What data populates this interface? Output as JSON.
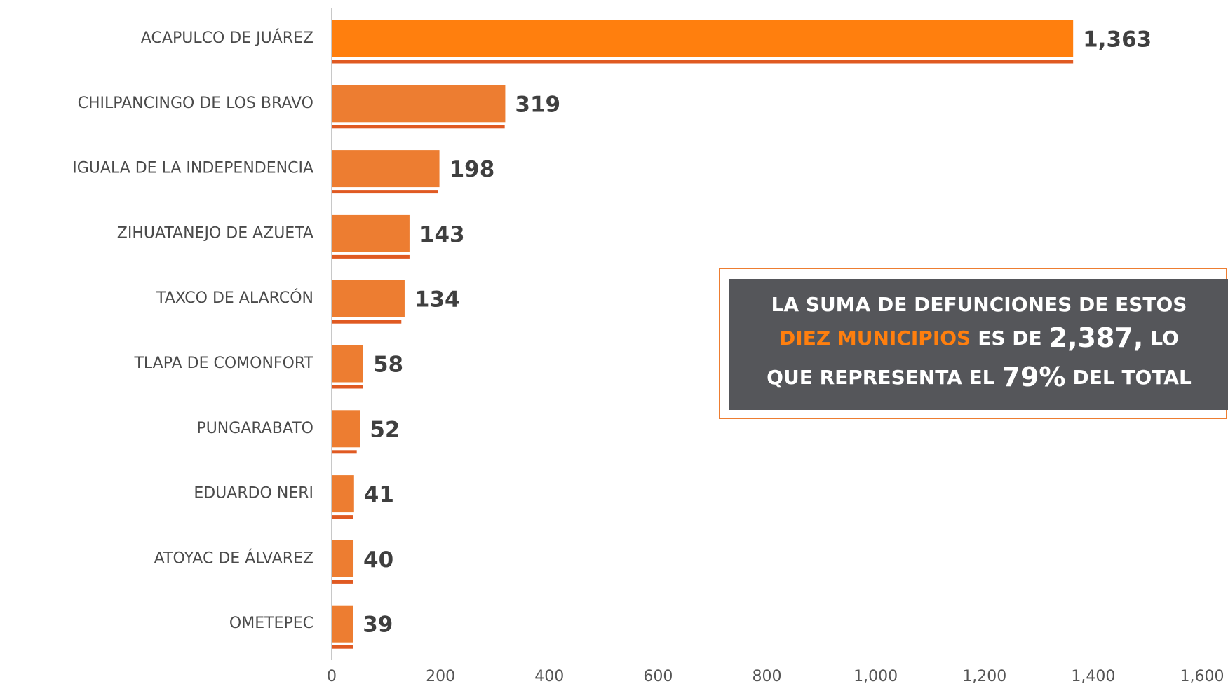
{
  "chart_data": {
    "type": "barh",
    "categories": [
      "ACAPULCO DE JUÁREZ",
      "CHILPANCINGO DE LOS BRAVO",
      "IGUALA DE LA INDEPENDENCIA",
      "ZIHUATANEJO DE AZUETA",
      "TAXCO DE ALARCÓN",
      "TLAPA DE COMONFORT",
      "PUNGARABATO",
      "EDUARDO NERI",
      "ATOYAC DE ÁLVAREZ",
      "OMETEPEC"
    ],
    "series": [
      {
        "colors": [
          "#ff7f0e",
          "#ed7d31",
          "#ed7d31",
          "#ed7d31",
          "#ed7d31",
          "#ed7d31",
          "#ed7d31",
          "#ed7d31",
          "#ed7d31",
          "#ed7d31"
        ],
        "values": [
          1363,
          319,
          198,
          143,
          134,
          58,
          52,
          41,
          40,
          39
        ],
        "value_labels": [
          "1,363",
          "319",
          "198",
          "143",
          "134",
          "58",
          "52",
          "41",
          "40",
          "39"
        ]
      },
      {
        "color": "#e05a22",
        "values": [
          1363,
          318,
          195,
          143,
          128,
          58,
          46,
          39,
          39,
          39
        ]
      }
    ],
    "xlim": [
      0,
      1600
    ],
    "xticks": [
      0,
      200,
      400,
      600,
      800,
      {
        "value": 1000,
        "label": "1,000"
      },
      {
        "value": 1200,
        "label": "1,200"
      },
      {
        "value": 1400,
        "label": "1,400"
      },
      {
        "value": 1600,
        "label": "1,600"
      }
    ],
    "annotation": {
      "lines": [
        [
          "LA SUMA DE DEFUNCIONES DE ESTOS"
        ],
        [
          "DIEZ MUNICIPIOS",
          "ES DE",
          "2,387,",
          "LO"
        ],
        [
          "QUE REPRESENTA EL",
          "79%",
          "DEL TOTAL"
        ]
      ]
    }
  }
}
